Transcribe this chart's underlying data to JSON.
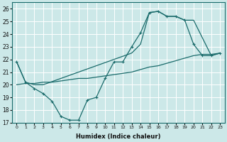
{
  "xlabel": "Humidex (Indice chaleur)",
  "bg_color": "#cce8e8",
  "grid_color": "#b8d8d8",
  "line_color": "#1a6b6b",
  "xlim": [
    -0.5,
    23.5
  ],
  "ylim": [
    17,
    26.5
  ],
  "yticks": [
    17,
    18,
    19,
    20,
    21,
    22,
    23,
    24,
    25,
    26
  ],
  "xticks": [
    0,
    1,
    2,
    3,
    4,
    5,
    6,
    7,
    8,
    9,
    10,
    11,
    12,
    13,
    14,
    15,
    16,
    17,
    18,
    19,
    20,
    21,
    22,
    23
  ],
  "series1_x": [
    0,
    1,
    2,
    3,
    4,
    5,
    6,
    7,
    8,
    9,
    10,
    11,
    12,
    13,
    14,
    15,
    16,
    17,
    18,
    19,
    20,
    21,
    22,
    23
  ],
  "series1_y": [
    21.8,
    20.2,
    19.7,
    19.3,
    18.7,
    17.5,
    17.2,
    17.2,
    18.8,
    19.0,
    20.5,
    21.8,
    21.8,
    23.0,
    24.1,
    25.7,
    25.8,
    25.4,
    25.4,
    25.1,
    23.2,
    22.3,
    22.3,
    22.5
  ],
  "series2_x": [
    0,
    1,
    2,
    3,
    13,
    14,
    15,
    16,
    17,
    18,
    19,
    20,
    22,
    23
  ],
  "series2_y": [
    21.8,
    20.2,
    20.0,
    20.0,
    22.5,
    23.2,
    25.7,
    25.8,
    25.4,
    25.4,
    25.1,
    25.1,
    22.3,
    22.5
  ],
  "series3_x": [
    0,
    1,
    2,
    3,
    4,
    5,
    6,
    7,
    8,
    9,
    10,
    11,
    12,
    13,
    14,
    15,
    16,
    17,
    18,
    19,
    20,
    21,
    22,
    23
  ],
  "series3_y": [
    20.0,
    20.1,
    20.1,
    20.2,
    20.2,
    20.3,
    20.4,
    20.5,
    20.5,
    20.6,
    20.7,
    20.8,
    20.9,
    21.0,
    21.2,
    21.4,
    21.5,
    21.7,
    21.9,
    22.1,
    22.3,
    22.4,
    22.4,
    22.5
  ]
}
